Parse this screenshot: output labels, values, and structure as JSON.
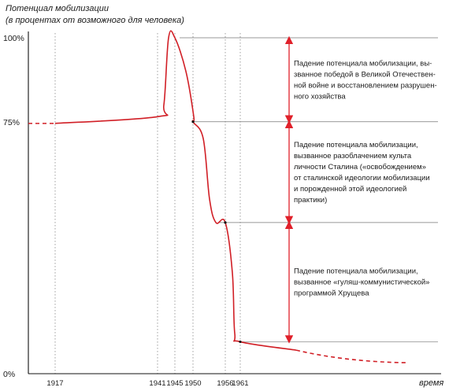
{
  "chart_data": {
    "type": "line",
    "ylabel": "Потенциал мобилизации",
    "ylabel_sub": "(в процентах от возможного для человека)",
    "xlabel": "время",
    "y_ticks": [
      "100%",
      "75%",
      "0%"
    ],
    "x_ticks": [
      "1917",
      "1941",
      "1945",
      "1950",
      "1956",
      "1961"
    ],
    "ylim": [
      0,
      100
    ],
    "grid": true,
    "colors": {
      "curve": "#d11f26",
      "arrow": "#e0202a",
      "axis": "#111111",
      "grid": "#777777"
    },
    "series": [
      {
        "points": [
          {
            "x": 1917,
            "y": 74.5
          },
          {
            "x": 1941,
            "y": 76.5
          },
          {
            "x": 1942,
            "y": 80
          },
          {
            "x": 1943,
            "y": 100
          },
          {
            "x": 1945,
            "y": 100
          },
          {
            "x": 1946,
            "y": 90
          },
          {
            "x": 1947,
            "y": 76.5
          },
          {
            "x": 1950,
            "y": 75
          },
          {
            "x": 1951,
            "y": 70
          },
          {
            "x": 1952,
            "y": 52
          },
          {
            "x": 1953,
            "y": 45
          },
          {
            "x": 1956,
            "y": 45
          },
          {
            "x": 1958,
            "y": 30
          },
          {
            "x": 1959,
            "y": 12
          },
          {
            "x": 1961,
            "y": 9.5
          },
          {
            "x": 1975,
            "y": 7
          }
        ],
        "dashed_before": 1917,
        "dashed_after": 1975
      }
    ],
    "reference_levels": [
      100,
      75,
      45,
      9.5
    ],
    "annotations": [
      {
        "from": 100,
        "to": 75,
        "lines": [
          "Падение потенциала мобилизации, вы-",
          "званное победой в Великой Отечествен-",
          "ной войне и восстановлением разрушен-",
          "ного хозяйства"
        ]
      },
      {
        "from": 75,
        "to": 45,
        "lines": [
          "Падение потенциала мобилизации,",
          "вызванное разоблачением культа",
          "личности Сталина («освобождением»",
          "от сталинской идеологии мобилизации",
          "и порожденной этой идеологией",
          "практики)"
        ]
      },
      {
        "from": 45,
        "to": 9.5,
        "lines": [
          "Падение потенциала мобилизации,",
          "вызванное «гуляш-коммунистической»",
          "программой Хрущева"
        ]
      }
    ]
  }
}
